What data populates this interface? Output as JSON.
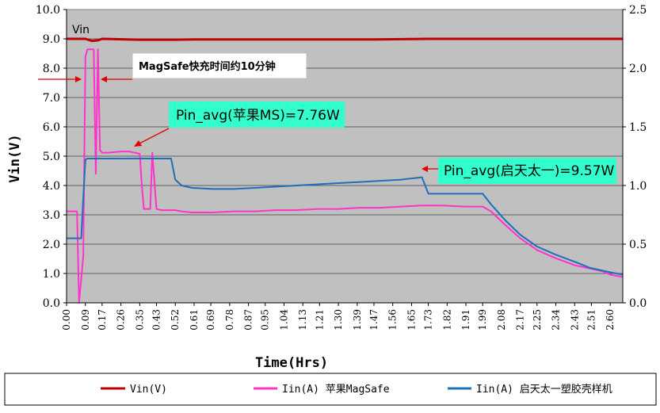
{
  "chart_data": {
    "type": "line",
    "xlabel": "Time(Hrs)",
    "ylabel": "Vin(V)",
    "ylim": [
      0,
      10
    ],
    "y2lim": [
      0,
      2.5
    ],
    "yticks": [
      "0.0",
      "1.0",
      "2.0",
      "3.0",
      "4.0",
      "5.0",
      "6.0",
      "7.0",
      "8.0",
      "9.0",
      "10.0"
    ],
    "y2ticks": [
      "0.0",
      "0.5",
      "1.0",
      "1.5",
      "2.0",
      "2.5"
    ],
    "xticks": [
      "0.00",
      "0.09",
      "0.17",
      "0.26",
      "0.35",
      "0.43",
      "0.52",
      "0.61",
      "0.69",
      "0.78",
      "0.87",
      "0.95",
      "1.04",
      "1.13",
      "1.21",
      "1.30",
      "1.39",
      "1.47",
      "1.56",
      "1.65",
      "1.73",
      "1.82",
      "1.91",
      "1.99",
      "2.08",
      "2.17",
      "2.25",
      "2.34",
      "2.43",
      "2.51",
      "2.60"
    ],
    "xlim": [
      0,
      2.66
    ],
    "plot_background": "#c0c0c0",
    "grid": true,
    "legend_position": "bottom",
    "series": [
      {
        "name": "Vin(V)",
        "axis": "left",
        "color": "#c00000",
        "x": [
          0.0,
          0.09,
          0.12,
          0.15,
          0.17,
          0.35,
          0.52,
          0.61,
          1.47,
          1.73,
          2.66
        ],
        "y": [
          9.0,
          9.0,
          8.93,
          8.95,
          9.0,
          8.97,
          8.97,
          8.98,
          8.98,
          9.0,
          9.0
        ]
      },
      {
        "name": "Iin(A) 苹果MagSafe",
        "axis": "right",
        "color": "#ff33cc",
        "x": [
          0.0,
          0.05,
          0.06,
          0.08,
          0.09,
          0.1,
          0.13,
          0.14,
          0.15,
          0.16,
          0.17,
          0.2,
          0.26,
          0.3,
          0.35,
          0.36,
          0.37,
          0.4,
          0.41,
          0.43,
          0.45,
          0.52,
          0.55,
          0.6,
          0.7,
          0.8,
          0.9,
          1.0,
          1.1,
          1.2,
          1.3,
          1.4,
          1.47,
          1.5,
          1.6,
          1.7,
          1.8,
          1.9,
          1.99,
          2.03,
          2.1,
          2.17,
          2.25,
          2.34,
          2.43,
          2.51,
          2.56,
          2.6,
          2.66
        ],
        "y": [
          0.78,
          0.78,
          0.0,
          0.4,
          2.1,
          2.16,
          2.16,
          1.1,
          2.16,
          1.3,
          1.28,
          1.28,
          1.29,
          1.29,
          1.27,
          1.0,
          0.8,
          0.8,
          1.28,
          0.8,
          0.79,
          0.79,
          0.78,
          0.77,
          0.77,
          0.78,
          0.78,
          0.79,
          0.79,
          0.8,
          0.8,
          0.81,
          0.81,
          0.81,
          0.82,
          0.83,
          0.83,
          0.82,
          0.82,
          0.78,
          0.66,
          0.55,
          0.45,
          0.38,
          0.32,
          0.29,
          0.27,
          0.24,
          0.22
        ]
      },
      {
        "name": "Iin(A) 启天太一塑胶壳样机",
        "axis": "right",
        "color": "#1f6fba",
        "x": [
          0.0,
          0.05,
          0.07,
          0.08,
          0.09,
          0.1,
          0.12,
          0.2,
          0.3,
          0.35,
          0.4,
          0.45,
          0.5,
          0.52,
          0.55,
          0.6,
          0.7,
          0.8,
          0.9,
          1.0,
          1.1,
          1.2,
          1.3,
          1.4,
          1.5,
          1.6,
          1.7,
          1.73,
          1.8,
          1.9,
          1.99,
          2.03,
          2.1,
          2.17,
          2.25,
          2.34,
          2.43,
          2.5,
          2.55,
          2.6,
          2.66
        ],
        "y": [
          0.55,
          0.55,
          0.55,
          0.9,
          1.22,
          1.23,
          1.23,
          1.23,
          1.23,
          1.23,
          1.23,
          1.23,
          1.23,
          1.05,
          1.0,
          0.98,
          0.97,
          0.97,
          0.98,
          0.99,
          1.0,
          1.01,
          1.02,
          1.03,
          1.04,
          1.05,
          1.07,
          0.93,
          0.93,
          0.93,
          0.93,
          0.84,
          0.7,
          0.58,
          0.48,
          0.41,
          0.35,
          0.3,
          0.28,
          0.26,
          0.24
        ]
      }
    ],
    "annotations": [
      {
        "text": "Vin"
      },
      {
        "text": "MagSafe快充时间约10分钟"
      },
      {
        "text": "Pin_avg(苹果MS)=7.76W"
      },
      {
        "text": "Pin_avg(启天太一)=9.57W"
      }
    ],
    "legend": [
      "Vin(V)",
      "Iin(A) 苹果MagSafe",
      "Iin(A) 启天太一塑胶壳样机"
    ]
  }
}
